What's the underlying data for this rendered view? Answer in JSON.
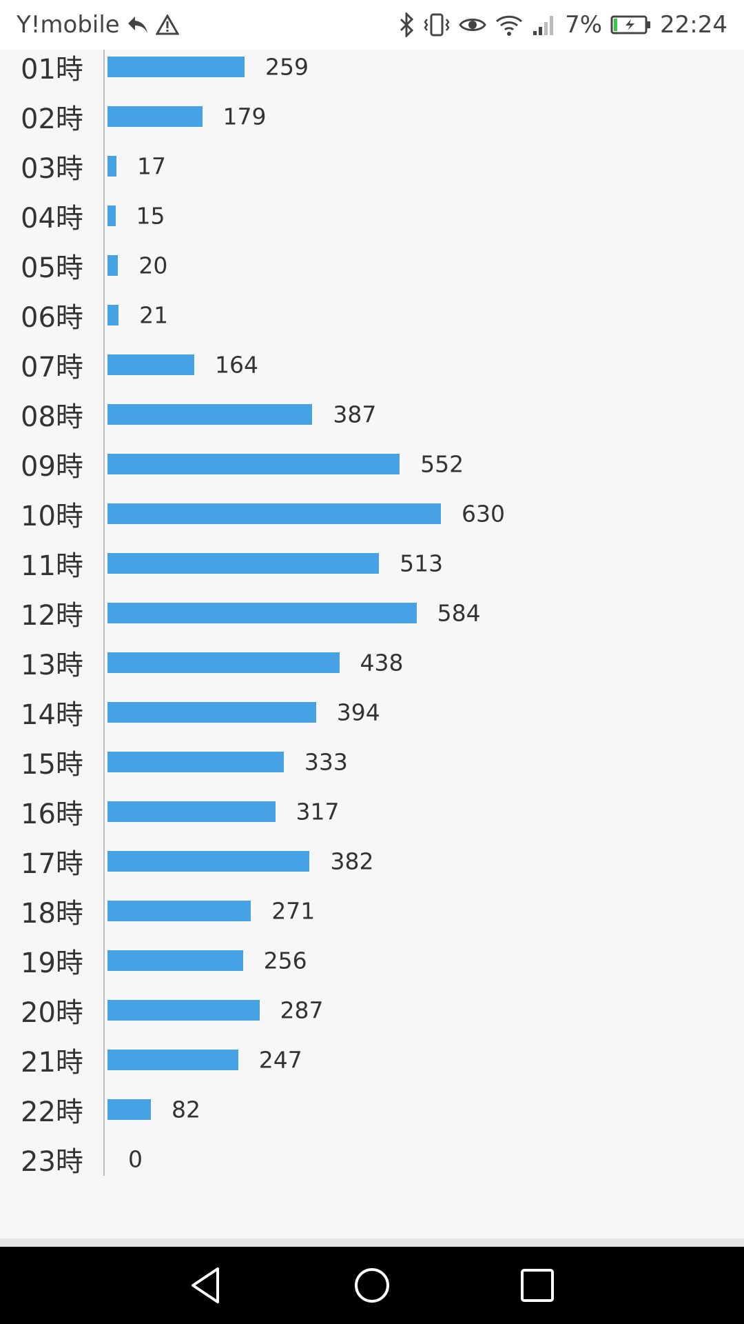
{
  "status_bar": {
    "carrier": "Y!mobile",
    "battery_percent": "7%",
    "time": "22:24",
    "icons": [
      "reply-icon",
      "warning-icon",
      "bluetooth-icon",
      "vibrate-icon",
      "eye-icon",
      "wifi-icon",
      "signal-icon",
      "battery-charging-icon"
    ]
  },
  "chart_data": {
    "type": "bar",
    "orientation": "horizontal",
    "categories": [
      "01時",
      "02時",
      "03時",
      "04時",
      "05時",
      "06時",
      "07時",
      "08時",
      "09時",
      "10時",
      "11時",
      "12時",
      "13時",
      "14時",
      "15時",
      "16時",
      "17時",
      "18時",
      "19時",
      "20時",
      "21時",
      "22時",
      "23時"
    ],
    "values": [
      259,
      179,
      17,
      15,
      20,
      21,
      164,
      387,
      552,
      630,
      513,
      584,
      438,
      394,
      333,
      317,
      382,
      271,
      256,
      287,
      247,
      82,
      0
    ],
    "bar_color": "#46a1e5",
    "grid": false
  },
  "navigation": {
    "icons": [
      "back-icon",
      "home-icon",
      "recents-icon"
    ]
  }
}
